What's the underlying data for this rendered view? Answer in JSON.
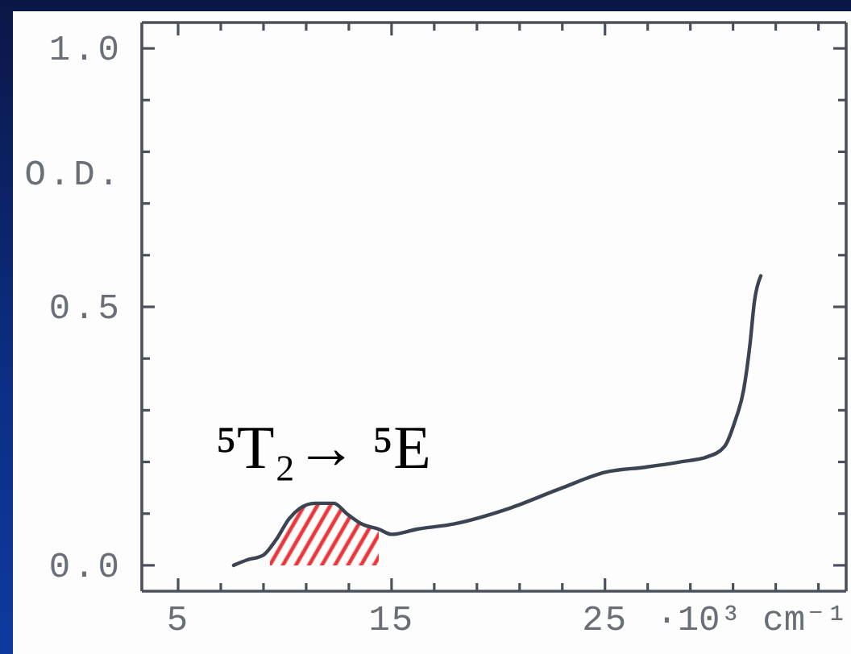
{
  "chart_data": {
    "type": "line",
    "xlabel": "·10³ cm⁻¹",
    "ylabel": "O.D.",
    "xlim": [
      3.3,
      36.3
    ],
    "xticks": [
      5,
      {
        "value": 7,
        "label": null
      },
      {
        "value": 9,
        "label": null
      },
      {
        "value": 11,
        "label": null
      },
      {
        "value": 13,
        "label": null
      },
      15,
      {
        "value": 17,
        "label": null
      },
      {
        "value": 19,
        "label": null
      },
      {
        "value": 21,
        "label": null
      },
      {
        "value": 23,
        "label": null
      },
      25,
      {
        "value": 27,
        "label": null
      },
      {
        "value": 29,
        "label": null
      },
      {
        "value": 31,
        "label": null
      },
      {
        "value": 33,
        "label": null
      },
      {
        "value": 35,
        "label": null
      }
    ],
    "ylim": [
      -0.05,
      1.05
    ],
    "yticks": [
      {
        "value": 0,
        "label": "0.0"
      },
      {
        "value": 0.1,
        "label": null
      },
      {
        "value": 0.2,
        "label": null
      },
      {
        "value": 0.3,
        "label": null
      },
      {
        "value": 0.4,
        "label": null
      },
      {
        "value": 0.5,
        "label": "0.5"
      },
      {
        "value": 0.6,
        "label": null
      },
      {
        "value": 0.7,
        "label": null
      },
      {
        "value": 0.8,
        "label": null
      },
      {
        "value": 0.9,
        "label": null
      },
      {
        "value": 1,
        "label": "1.0"
      }
    ],
    "series": [
      {
        "color": "#3b4452",
        "x": [
          7.6,
          8.2,
          9.0,
          9.6,
          10.2,
          10.7,
          11.4,
          12.3,
          12.9,
          13.6,
          14.4,
          15.0,
          16.2,
          17.9,
          20.5,
          23.0,
          25.0,
          26.9,
          28.5,
          29.8,
          30.6,
          31.1,
          31.5,
          31.8,
          32.0,
          32.3
        ],
        "values": [
          0.0,
          0.01,
          0.02,
          0.05,
          0.09,
          0.11,
          0.12,
          0.12,
          0.1,
          0.08,
          0.07,
          0.06,
          0.07,
          0.08,
          0.11,
          0.15,
          0.18,
          0.19,
          0.2,
          0.21,
          0.23,
          0.28,
          0.34,
          0.43,
          0.51,
          0.56
        ]
      },
      {
        "type": "area",
        "color": "#e8383d",
        "x": [
          9.3,
          9.6,
          10.2,
          10.7,
          11.4,
          12.3,
          12.9,
          13.6,
          14.4
        ],
        "values": [
          0.04,
          0.05,
          0.09,
          0.11,
          0.12,
          0.12,
          0.1,
          0.08,
          0.07
        ]
      }
    ],
    "annotations": [
      {
        "text": "⁵T₂→ ⁵E",
        "x": 11.8,
        "y": 0.12
      }
    ]
  }
}
